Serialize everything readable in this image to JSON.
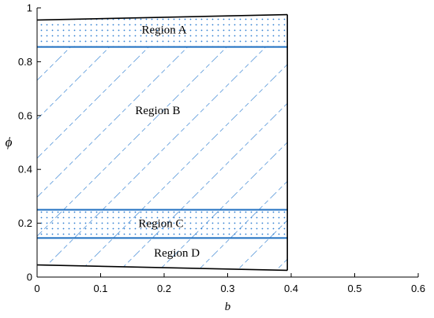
{
  "chart_data": {
    "type": "area",
    "xlabel": "b",
    "ylabel": "ϕ",
    "xlim": [
      0,
      0.6
    ],
    "ylim": [
      0,
      1
    ],
    "xticks": [
      "0",
      "0.1",
      "0.2",
      "0.3",
      "0.4",
      "0.5",
      "0.6"
    ],
    "yticks": [
      "0",
      "0.2",
      "0.4",
      "0.6",
      "0.8",
      "1"
    ],
    "grid": false,
    "legend": "none",
    "boundary": {
      "upper": {
        "x": [
          0,
          0.394
        ],
        "y": [
          0.955,
          0.975
        ]
      },
      "lower": {
        "x": [
          0,
          0.394
        ],
        "y": [
          0.045,
          0.025
        ]
      },
      "right_x": 0.394
    },
    "lines": [
      {
        "y": 0.855,
        "x": [
          0,
          0.394
        ]
      },
      {
        "y": 0.25,
        "x": [
          0,
          0.394
        ]
      },
      {
        "y": 0.145,
        "x": [
          0,
          0.394
        ]
      }
    ],
    "regions": [
      {
        "label": "Region A",
        "y_range": [
          0.855,
          "upper"
        ],
        "pattern": "dots",
        "label_at": [
          0.2,
          0.92
        ]
      },
      {
        "label": "Region B",
        "y_range": [
          0.25,
          0.855
        ],
        "pattern": "dashed-diagonal",
        "label_at": [
          0.19,
          0.62
        ]
      },
      {
        "label": "Region C",
        "y_range": [
          0.145,
          0.25
        ],
        "pattern": "dots+dashed-diagonal",
        "label_at": [
          0.195,
          0.2
        ]
      },
      {
        "label": "Region D",
        "y_range": [
          "lower",
          0.145
        ],
        "pattern": "dashed-diagonal",
        "label_at": [
          0.22,
          0.09
        ]
      }
    ],
    "colors": {
      "region_lines": "#1f6fc0",
      "pattern": "#2a7bd0",
      "boundary": "#000000"
    }
  }
}
